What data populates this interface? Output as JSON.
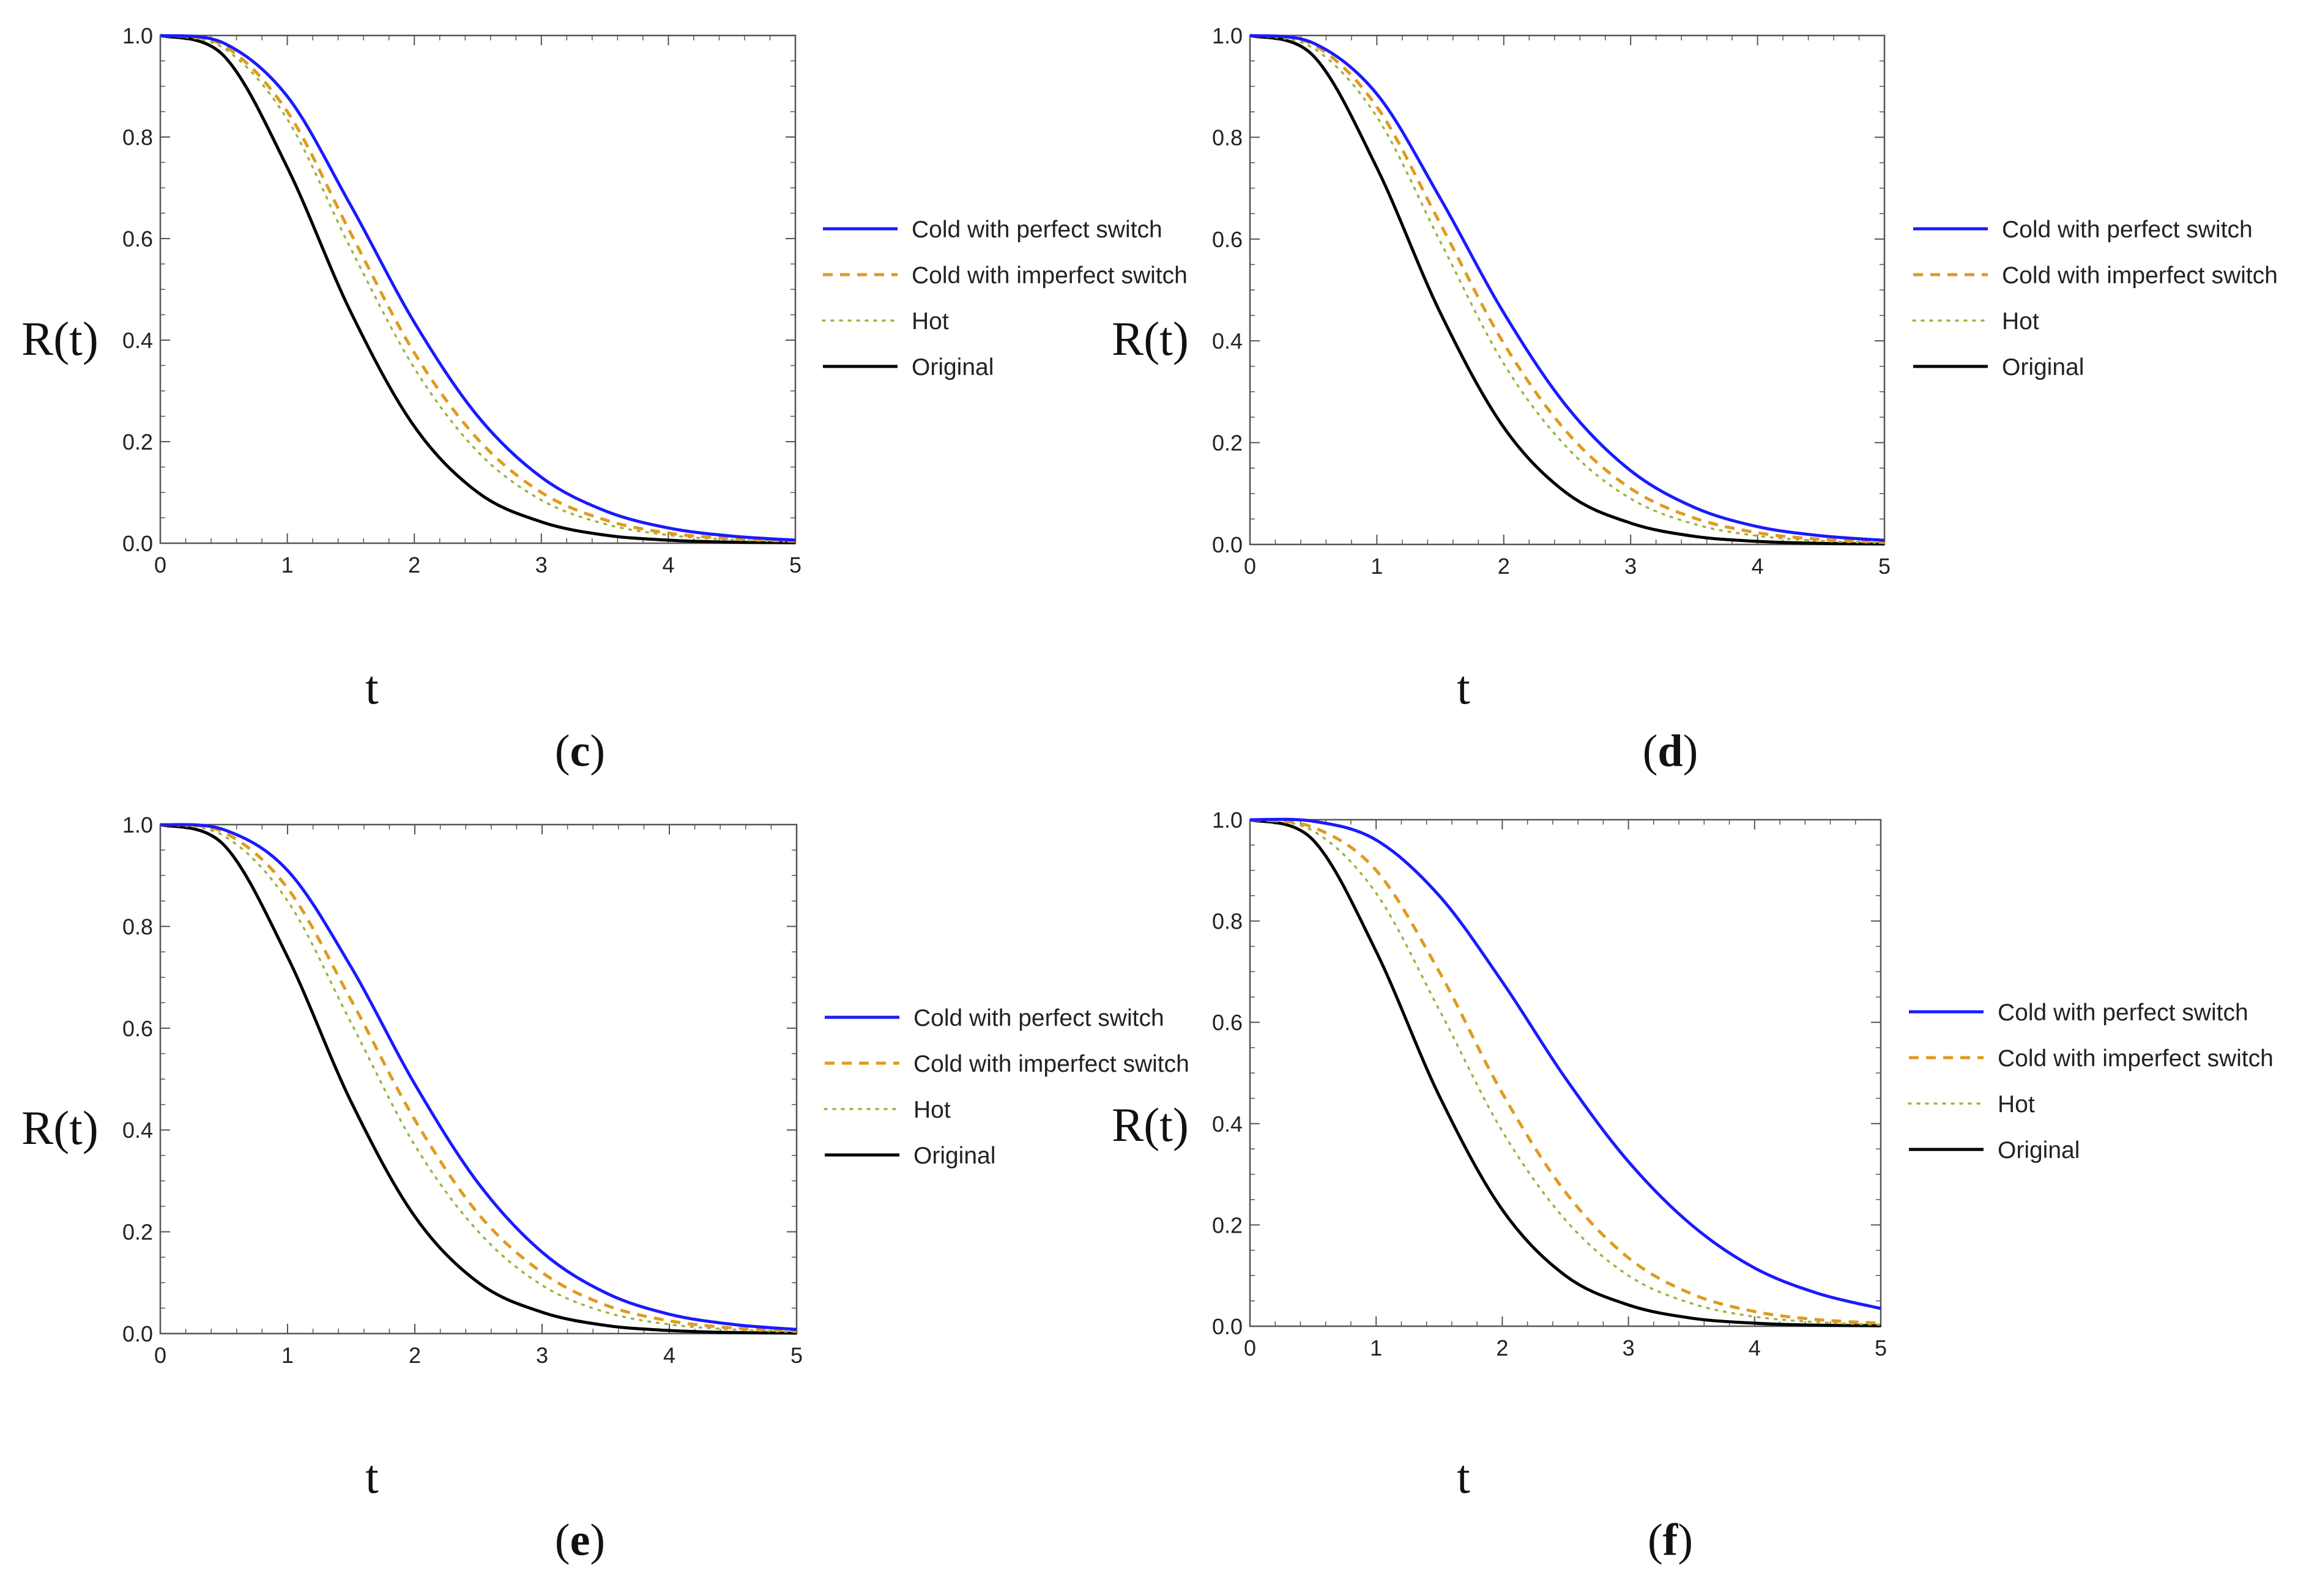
{
  "colors": {
    "cold_perfect": "#1a1aff",
    "cold_imperfect": "#e09a1e",
    "hot": "#9db33c",
    "original": "#000000",
    "frame": "#555555"
  },
  "chart_data": [
    {
      "panel": "c",
      "type": "line",
      "xlabel": "t",
      "ylabel": "R(t)",
      "caption": "c",
      "xlim": [
        0,
        5
      ],
      "ylim": [
        0,
        1
      ],
      "xticks": [
        "0",
        "1",
        "2",
        "3",
        "4",
        "5"
      ],
      "yticks": [
        "0.0",
        "0.2",
        "0.4",
        "0.6",
        "0.8",
        "1.0"
      ],
      "grid": false,
      "legend_position": "right",
      "x": [
        0,
        0.5,
        1,
        1.5,
        2,
        2.5,
        3,
        3.5,
        4,
        4.5,
        5
      ],
      "series": [
        {
          "name": "Cold with perfect switch",
          "style": "solid",
          "color_key": "cold_perfect",
          "values": [
            1.0,
            0.985,
            0.88,
            0.665,
            0.435,
            0.25,
            0.13,
            0.064,
            0.03,
            0.014,
            0.006
          ]
        },
        {
          "name": "Cold with imperfect switch",
          "style": "dashed",
          "color_key": "cold_imperfect",
          "values": [
            1.0,
            0.98,
            0.85,
            0.61,
            0.375,
            0.205,
            0.1,
            0.046,
            0.02,
            0.009,
            0.004
          ]
        },
        {
          "name": "Hot",
          "style": "dotted",
          "color_key": "hot",
          "values": [
            1.0,
            0.975,
            0.835,
            0.58,
            0.345,
            0.18,
            0.085,
            0.038,
            0.016,
            0.007,
            0.003
          ]
        },
        {
          "name": "Original",
          "style": "solid",
          "color_key": "original",
          "values": [
            1.0,
            0.96,
            0.74,
            0.455,
            0.23,
            0.1,
            0.042,
            0.016,
            0.006,
            0.002,
            0.001
          ]
        }
      ]
    },
    {
      "panel": "d",
      "type": "line",
      "xlabel": "t",
      "ylabel": "R(t)",
      "caption": "d",
      "xlim": [
        0,
        5
      ],
      "ylim": [
        0,
        1
      ],
      "xticks": [
        "0",
        "1",
        "2",
        "3",
        "4",
        "5"
      ],
      "yticks": [
        "0.0",
        "0.2",
        "0.4",
        "0.6",
        "0.8",
        "1.0"
      ],
      "grid": false,
      "legend_position": "right",
      "x": [
        0,
        0.5,
        1,
        1.5,
        2,
        2.5,
        3,
        3.5,
        4,
        4.5,
        5
      ],
      "series": [
        {
          "name": "Cold with perfect switch",
          "style": "solid",
          "color_key": "cold_perfect",
          "values": [
            1.0,
            0.985,
            0.885,
            0.68,
            0.455,
            0.27,
            0.145,
            0.073,
            0.035,
            0.017,
            0.008
          ]
        },
        {
          "name": "Cold with imperfect switch",
          "style": "dashed",
          "color_key": "cold_imperfect",
          "values": [
            1.0,
            0.982,
            0.86,
            0.63,
            0.395,
            0.22,
            0.11,
            0.052,
            0.023,
            0.01,
            0.004
          ]
        },
        {
          "name": "Hot",
          "style": "dotted",
          "color_key": "hot",
          "values": [
            1.0,
            0.975,
            0.84,
            0.595,
            0.355,
            0.19,
            0.09,
            0.04,
            0.017,
            0.007,
            0.003
          ]
        },
        {
          "name": "Original",
          "style": "solid",
          "color_key": "original",
          "values": [
            1.0,
            0.96,
            0.74,
            0.455,
            0.23,
            0.1,
            0.042,
            0.016,
            0.006,
            0.002,
            0.001
          ]
        }
      ]
    },
    {
      "panel": "e",
      "type": "line",
      "xlabel": "t",
      "ylabel": "R(t)",
      "caption": "e",
      "xlim": [
        0,
        5
      ],
      "ylim": [
        0,
        1
      ],
      "xticks": [
        "0",
        "1",
        "2",
        "3",
        "4",
        "5"
      ],
      "yticks": [
        "0.0",
        "0.2",
        "0.4",
        "0.6",
        "0.8",
        "1.0"
      ],
      "grid": false,
      "legend_position": "right",
      "x": [
        0,
        0.5,
        1,
        1.5,
        2,
        2.5,
        3,
        3.5,
        4,
        4.5,
        5
      ],
      "series": [
        {
          "name": "Cold with perfect switch",
          "style": "solid",
          "color_key": "cold_perfect",
          "values": [
            1.0,
            0.99,
            0.91,
            0.72,
            0.49,
            0.295,
            0.16,
            0.08,
            0.038,
            0.018,
            0.008
          ]
        },
        {
          "name": "Cold with imperfect switch",
          "style": "dashed",
          "color_key": "cold_imperfect",
          "values": [
            1.0,
            0.985,
            0.875,
            0.655,
            0.42,
            0.235,
            0.12,
            0.056,
            0.025,
            0.011,
            0.005
          ]
        },
        {
          "name": "Hot",
          "style": "dotted",
          "color_key": "hot",
          "values": [
            1.0,
            0.978,
            0.85,
            0.61,
            0.37,
            0.2,
            0.095,
            0.042,
            0.018,
            0.008,
            0.003
          ]
        },
        {
          "name": "Original",
          "style": "solid",
          "color_key": "original",
          "values": [
            1.0,
            0.96,
            0.74,
            0.455,
            0.23,
            0.1,
            0.042,
            0.016,
            0.006,
            0.002,
            0.001
          ]
        }
      ]
    },
    {
      "panel": "f",
      "type": "line",
      "xlabel": "t",
      "ylabel": "R(t)",
      "caption": "f",
      "xlim": [
        0,
        5
      ],
      "ylim": [
        0,
        1
      ],
      "xticks": [
        "0",
        "1",
        "2",
        "3",
        "4",
        "5"
      ],
      "yticks": [
        "0.0",
        "0.2",
        "0.4",
        "0.6",
        "0.8",
        "1.0"
      ],
      "grid": false,
      "legend_position": "right",
      "x": [
        0,
        0.5,
        1,
        1.5,
        2,
        2.5,
        3,
        3.5,
        4,
        4.5,
        5
      ],
      "series": [
        {
          "name": "Cold with perfect switch",
          "style": "solid",
          "color_key": "cold_perfect",
          "values": [
            1.0,
            0.997,
            0.96,
            0.85,
            0.68,
            0.49,
            0.325,
            0.2,
            0.115,
            0.065,
            0.035
          ]
        },
        {
          "name": "Cold with imperfect switch",
          "style": "dashed",
          "color_key": "cold_imperfect",
          "values": [
            1.0,
            0.985,
            0.9,
            0.7,
            0.46,
            0.265,
            0.135,
            0.064,
            0.029,
            0.013,
            0.006
          ]
        },
        {
          "name": "Hot",
          "style": "dotted",
          "color_key": "hot",
          "values": [
            1.0,
            0.978,
            0.855,
            0.625,
            0.385,
            0.21,
            0.1,
            0.045,
            0.019,
            0.008,
            0.003
          ]
        },
        {
          "name": "Original",
          "style": "solid",
          "color_key": "original",
          "values": [
            1.0,
            0.96,
            0.74,
            0.455,
            0.23,
            0.1,
            0.042,
            0.016,
            0.006,
            0.002,
            0.001
          ]
        }
      ]
    }
  ]
}
